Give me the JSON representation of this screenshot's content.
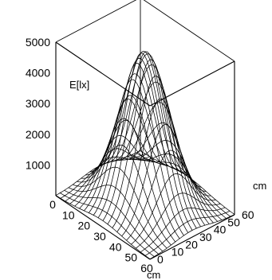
{
  "chart_data": {
    "type": "surface",
    "zlabel": "E[lx]",
    "xlabel": "cm",
    "ylabel": "cm",
    "z_ticks": [
      "1000",
      "2000",
      "3000",
      "4000",
      "5000"
    ],
    "x_ticks": [
      "0",
      "10",
      "20",
      "30",
      "40",
      "50",
      "60"
    ],
    "y_ticks": [
      "0",
      "10",
      "20",
      "30",
      "40",
      "50",
      "60"
    ],
    "xlim": [
      0,
      60
    ],
    "ylim": [
      0,
      60
    ],
    "zlim": [
      0,
      5000
    ],
    "surface": {
      "function": "gaussian",
      "peak_value": 5000,
      "center_x": 30,
      "center_y": 30,
      "sigma_cm": 12,
      "grid_step_cm": 3
    }
  }
}
